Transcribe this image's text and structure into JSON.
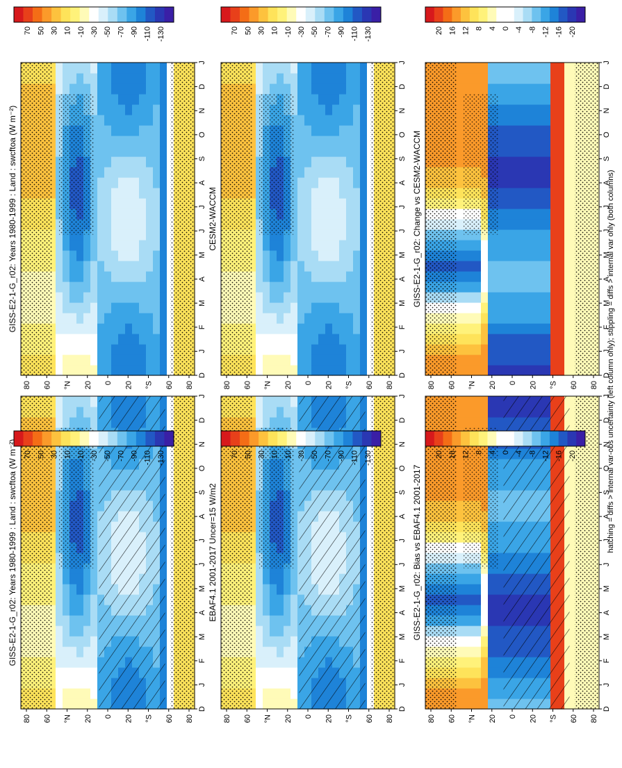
{
  "figure": {
    "footnote": "hatching = diffs > internal var-obs uncertainty (left column only); stippling = diffs > internal var only (both columns)",
    "panels": [
      {
        "id": "p-left-top",
        "title": "GISS-E2-1-G_r02: Years 1980-1999 : Land : swcftoa (W m⁻²)",
        "colorbar": "abs",
        "hatched": true,
        "kind": "abs"
      },
      {
        "id": "p-left-mid",
        "title": "EBAF4.1 2001-2017 Uncer=15 W/m2",
        "colorbar": "abs",
        "hatched": true,
        "kind": "abs"
      },
      {
        "id": "p-left-bot",
        "title": "GISS-E2-1-G_r02: Bias vs EBAF4.1 2001-2017",
        "colorbar": "diff",
        "hatched": true,
        "kind": "diff"
      },
      {
        "id": "p-right-top",
        "title": "GISS-E2-1-G_r02: Years 1980-1999 : Land : swcftoa (W m⁻²)",
        "colorbar": "abs",
        "hatched": false,
        "kind": "abs"
      },
      {
        "id": "p-right-mid",
        "title": "CESM2-WACCM",
        "colorbar": "abs",
        "hatched": false,
        "kind": "abs"
      },
      {
        "id": "p-right-bot",
        "title": "GISS-E2-1-G_r02: Change vs CESM2-WACCM",
        "colorbar": "diff",
        "hatched": false,
        "kind": "diff"
      }
    ],
    "time_labels": [
      "D",
      "J",
      "F",
      "M",
      "A",
      "M",
      "J",
      "J",
      "A",
      "S",
      "O",
      "N",
      "D",
      "J"
    ],
    "lat_labels": [
      "80",
      "60",
      "°N",
      "20",
      "0",
      "20",
      "°S",
      "60",
      "80"
    ],
    "colorbars": {
      "abs": {
        "labels": [
          "70",
          "50",
          "30",
          "10",
          "-10",
          "-30",
          "-50",
          "-70",
          "-90",
          "-110",
          "-130"
        ],
        "colors": [
          "#d7191c",
          "#e8401a",
          "#f46d16",
          "#fb9a2a",
          "#fdc23e",
          "#fee35a",
          "#fff27a",
          "#fffbb8",
          "#ffffff",
          "#d9f0fb",
          "#a9dcf5",
          "#6ec2ef",
          "#3aa5e6",
          "#1e83d8",
          "#2258c4",
          "#2a37b3",
          "#3a1fa6"
        ]
      },
      "diff": {
        "labels": [
          "20",
          "16",
          "12",
          "8",
          "4",
          "0",
          "-4",
          "-8",
          "-12",
          "-16",
          "-20"
        ],
        "colors": [
          "#d7191c",
          "#e8401a",
          "#f46d16",
          "#fb9a2a",
          "#fdc23e",
          "#fee35a",
          "#fff27a",
          "#fffbb8",
          "#ffffff",
          "#ffffff",
          "#d9f0fb",
          "#a9dcf5",
          "#6ec2ef",
          "#3aa5e6",
          "#1e83d8",
          "#2258c4",
          "#2a37b3",
          "#3a1fa6"
        ]
      }
    }
  },
  "chart_data": [
    {
      "type": "heatmap",
      "title": "GISS-E2-1-G_r02: Years 1980-1999 : Land : swcftoa (W m⁻²)",
      "x": "month (D..J)",
      "y": "latitude",
      "note": "values approx; positive yellow at high latitudes, negative blue (-50 to -100) in tropics"
    },
    {
      "type": "heatmap",
      "title": "EBAF4.1 2001-2017 Uncer=15 W/m2"
    },
    {
      "type": "heatmap",
      "title": "GISS-E2-1-G_r02: Bias vs EBAF4.1 2001-2017"
    },
    {
      "type": "heatmap",
      "title": "GISS-E2-1-G_r02: Years 1980-1999 : Land : swcftoa (W m⁻²)"
    },
    {
      "type": "heatmap",
      "title": "CESM2-WACCM"
    },
    {
      "type": "heatmap",
      "title": "GISS-E2-1-G_r02: Change vs CESM2-WACCM"
    }
  ]
}
